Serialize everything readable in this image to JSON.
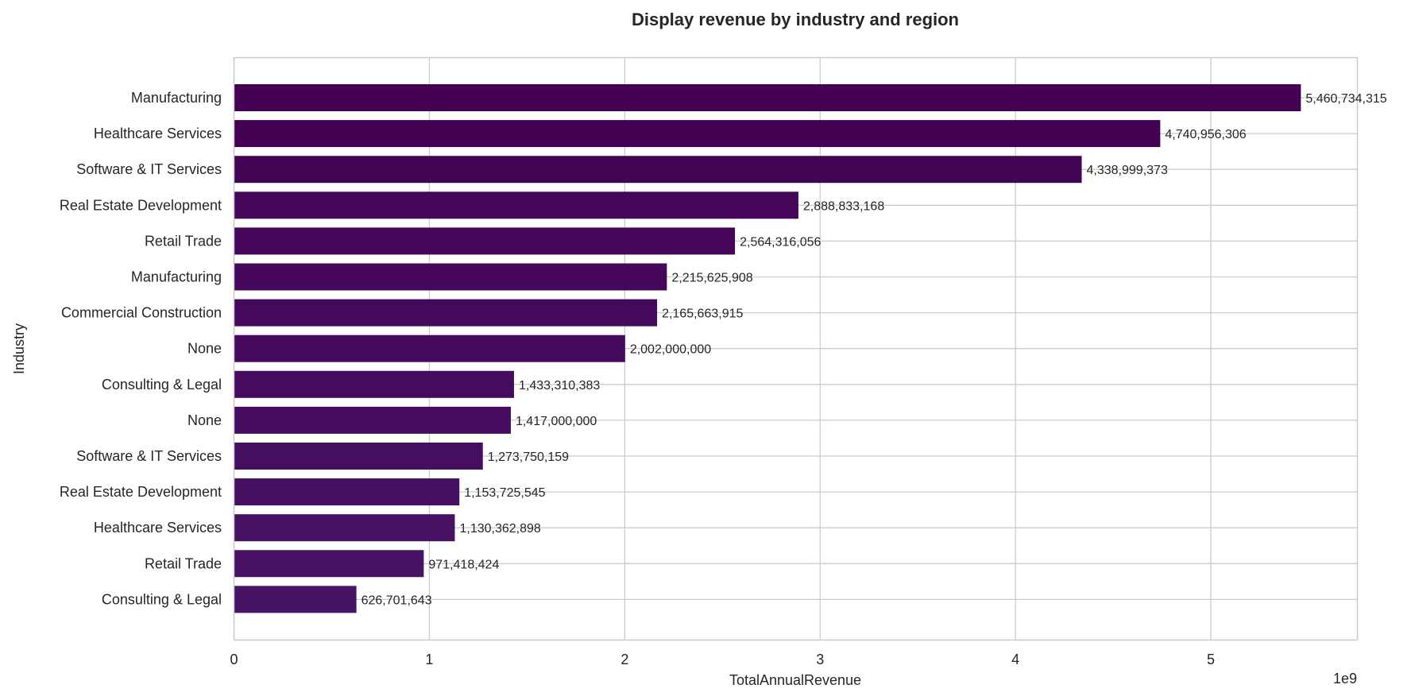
{
  "chart_data": {
    "type": "bar",
    "orientation": "horizontal",
    "title": "Display revenue by industry and region",
    "xlabel": "TotalAnnualRevenue",
    "ylabel": "Industry",
    "x_offset_text": "1e9",
    "xlim": [
      0,
      5.75
    ],
    "xticks": [
      0,
      1,
      2,
      3,
      4,
      5
    ],
    "xtick_labels": [
      "0",
      "1",
      "2",
      "3",
      "4",
      "5"
    ],
    "grid": true,
    "categories": [
      "Manufacturing",
      "Healthcare Services",
      "Software & IT Services",
      "Real Estate Development",
      "Retail Trade",
      "Manufacturing",
      "Commercial Construction",
      "None",
      "Consulting & Legal",
      "None",
      "Software & IT Services",
      "Real Estate Development",
      "Healthcare Services",
      "Retail Trade",
      "Consulting & Legal"
    ],
    "values": [
      5460734315,
      4740956306,
      4338999373,
      2888833168,
      2564316056,
      2215625908,
      2165663915,
      2002000000,
      1433310383,
      1417000000,
      1273750159,
      1153725545,
      1130362898,
      971418424,
      626701643
    ],
    "value_labels": [
      "5,460,734,315",
      "4,740,956,306",
      "4,338,999,373",
      "2,888,833,168",
      "2,564,316,056",
      "2,215,625,908",
      "2,165,663,915",
      "2,002,000,000",
      "1,433,310,383",
      "1,417,000,000",
      "1,273,750,159",
      "1,153,725,545",
      "1,130,362,898",
      "971,418,424",
      "626,701,643"
    ],
    "bar_color_start": "#440154",
    "bar_color_end": "#471365"
  }
}
